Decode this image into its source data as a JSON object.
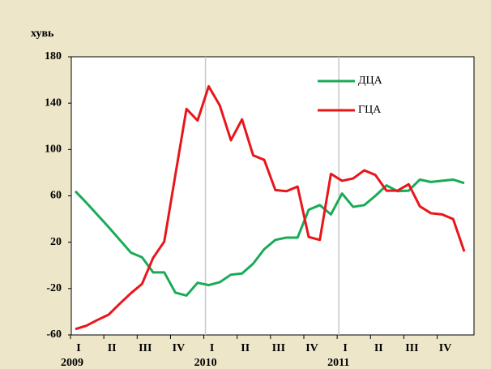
{
  "chart_data": {
    "type": "line",
    "y_label": "хувь",
    "categories": [
      "I",
      null,
      null,
      "II",
      null,
      null,
      "III",
      null,
      null,
      "IV",
      null,
      null,
      "I",
      null,
      null,
      "II",
      null,
      null,
      "III",
      null,
      null,
      "IV",
      null,
      null,
      "I",
      null,
      null,
      "II",
      null,
      null,
      "III",
      null,
      null,
      "IV",
      null,
      null
    ],
    "year_labels": [
      "2009",
      "2010",
      "2011"
    ],
    "series": [
      {
        "name": "ДЦА",
        "color": "#1aab58",
        "values": [
          64,
          54,
          43.5,
          33,
          22,
          11,
          7,
          -6,
          -6,
          -23.5,
          -26,
          -15,
          -17,
          -14.5,
          -8,
          -7,
          1.5,
          14,
          22,
          24,
          24,
          48,
          52,
          44,
          62,
          50.5,
          52,
          60,
          69,
          64,
          64.5,
          74,
          72,
          73,
          74,
          71
        ]
      },
      {
        "name": "ГЦА",
        "color": "#e8161b",
        "values": [
          -55,
          -52,
          -47,
          -42.5,
          -33,
          -24,
          -16,
          6.5,
          20.5,
          78,
          135,
          125,
          154.5,
          138,
          108,
          126,
          95,
          91,
          65,
          64,
          68,
          24.5,
          22,
          79,
          73,
          75,
          82,
          78,
          64.5,
          64.5,
          70,
          51,
          45,
          44,
          40,
          12
        ]
      }
    ],
    "ylim": [
      -60,
      180
    ],
    "yticks": [
      -60,
      -20,
      20,
      60,
      100,
      140,
      180
    ],
    "legend": "upper right"
  }
}
